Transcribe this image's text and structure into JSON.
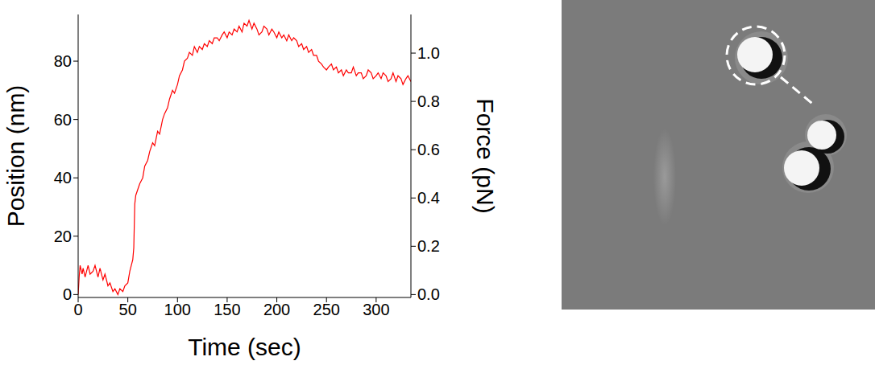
{
  "chart_data": {
    "type": "line",
    "x_label": "Time (sec)",
    "y_label": "Position (nm)",
    "y2_label": "Force (pN)",
    "color": "#ff0000",
    "x": [
      0,
      1,
      2,
      4,
      5,
      7,
      10,
      12,
      15,
      17,
      20,
      22,
      25,
      27,
      30,
      32,
      35,
      37,
      40,
      42,
      45,
      47,
      50,
      52,
      55,
      56,
      57,
      58,
      60,
      62,
      65,
      67,
      70,
      72,
      75,
      77,
      80,
      82,
      85,
      87,
      90,
      92,
      95,
      97,
      100,
      102,
      105,
      107,
      110,
      112,
      115,
      117,
      120,
      122,
      125,
      127,
      130,
      132,
      135,
      137,
      140,
      142,
      145,
      147,
      150,
      152,
      155,
      157,
      160,
      162,
      165,
      167,
      170,
      172,
      175,
      177,
      180,
      182,
      185,
      187,
      190,
      192,
      195,
      197,
      200,
      202,
      205,
      207,
      210,
      212,
      215,
      217,
      220,
      222,
      225,
      227,
      230,
      232,
      235,
      237,
      240,
      242,
      245,
      247,
      250,
      252,
      255,
      257,
      260,
      262,
      265,
      267,
      270,
      272,
      275,
      277,
      280,
      282,
      285,
      287,
      290,
      292,
      295,
      297,
      300,
      302,
      305,
      307,
      310,
      312,
      315,
      317,
      320,
      322,
      325,
      327,
      330,
      332,
      335
    ],
    "values": [
      0,
      6,
      10,
      7,
      9,
      6,
      10,
      7,
      8,
      10,
      6,
      9,
      5,
      7,
      3,
      4,
      1,
      2,
      0,
      2,
      1,
      3,
      4,
      8,
      12,
      16,
      31,
      34,
      36,
      38,
      40,
      44,
      46,
      49,
      52,
      51,
      56,
      55,
      60,
      62,
      64,
      67,
      70,
      69,
      72,
      75,
      77,
      80,
      81,
      83,
      82,
      85,
      83,
      85,
      84,
      86,
      85,
      87,
      86,
      88,
      88,
      87,
      89,
      90,
      88,
      90,
      89,
      91,
      90,
      92,
      90,
      93,
      92,
      94,
      91,
      93,
      91,
      89,
      90,
      92,
      91,
      89,
      91,
      90,
      88,
      90,
      88,
      89,
      87,
      89,
      87,
      88,
      87,
      85,
      86,
      84,
      85,
      83,
      84,
      82,
      82,
      80,
      79,
      78,
      77,
      78,
      79,
      77,
      78,
      76,
      77,
      75,
      77,
      76,
      76,
      78,
      75,
      76,
      76,
      74,
      75,
      77,
      76,
      74,
      75,
      76,
      74,
      76,
      75,
      73,
      74,
      76,
      73,
      75,
      74,
      72,
      74,
      75,
      73
    ],
    "xlim": [
      0,
      335
    ],
    "xticks": [
      0,
      50,
      100,
      150,
      200,
      250,
      300
    ],
    "ylim": [
      -1,
      96
    ],
    "yticks": [
      0,
      20,
      40,
      60,
      80
    ],
    "y2lim": [
      -0.012,
      1.16
    ],
    "y2ticks": [
      {
        "value": 0,
        "label": "0.0"
      },
      {
        "value": 0.2,
        "label": "0.2"
      },
      {
        "value": 0.4,
        "label": "0.4"
      },
      {
        "value": 0.6,
        "label": "0.6"
      },
      {
        "value": 0.8,
        "label": "0.8"
      },
      {
        "value": 1,
        "label": "1.0"
      }
    ]
  }
}
